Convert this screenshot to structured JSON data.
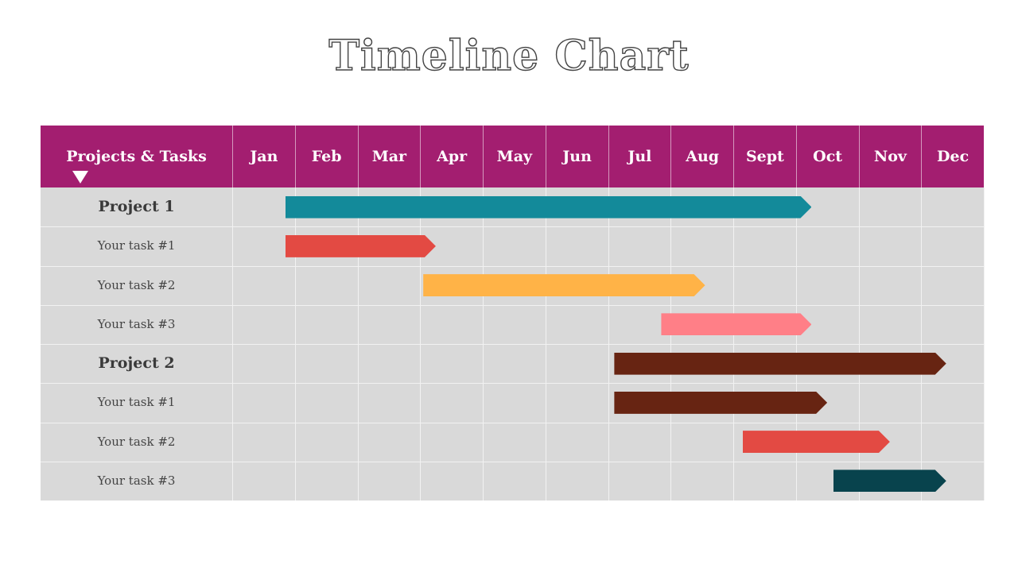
{
  "title": "Timeline Chart",
  "header": {
    "label": "Projects & Tasks",
    "arrow_icon": "triangle-down-icon"
  },
  "chart_data": {
    "type": "gantt",
    "months": [
      "Jan",
      "Feb",
      "Mar",
      "Apr",
      "May",
      "Jun",
      "Jul",
      "Aug",
      "Sept",
      "Oct",
      "Nov",
      "Dec"
    ],
    "rows": [
      {
        "label": "Project 1",
        "kind": "project",
        "start": 0.85,
        "end": 9.25,
        "color": "#138a9a"
      },
      {
        "label": "Your task #1",
        "kind": "task",
        "start": 0.85,
        "end": 3.25,
        "color": "#e34a43"
      },
      {
        "label": "Your task #2",
        "kind": "task",
        "start": 3.05,
        "end": 7.55,
        "color": "#ffb347"
      },
      {
        "label": "Your task #3",
        "kind": "task",
        "start": 6.85,
        "end": 9.25,
        "color": "#ff7f87"
      },
      {
        "label": "Project 2",
        "kind": "project",
        "start": 6.1,
        "end": 11.4,
        "color": "#672412"
      },
      {
        "label": "Your task #1",
        "kind": "task",
        "start": 6.1,
        "end": 9.5,
        "color": "#672412"
      },
      {
        "label": "Your task #2",
        "kind": "task",
        "start": 8.15,
        "end": 10.5,
        "color": "#e34a43"
      },
      {
        "label": "Your task #3",
        "kind": "task",
        "start": 9.6,
        "end": 11.4,
        "color": "#08434d"
      }
    ]
  }
}
